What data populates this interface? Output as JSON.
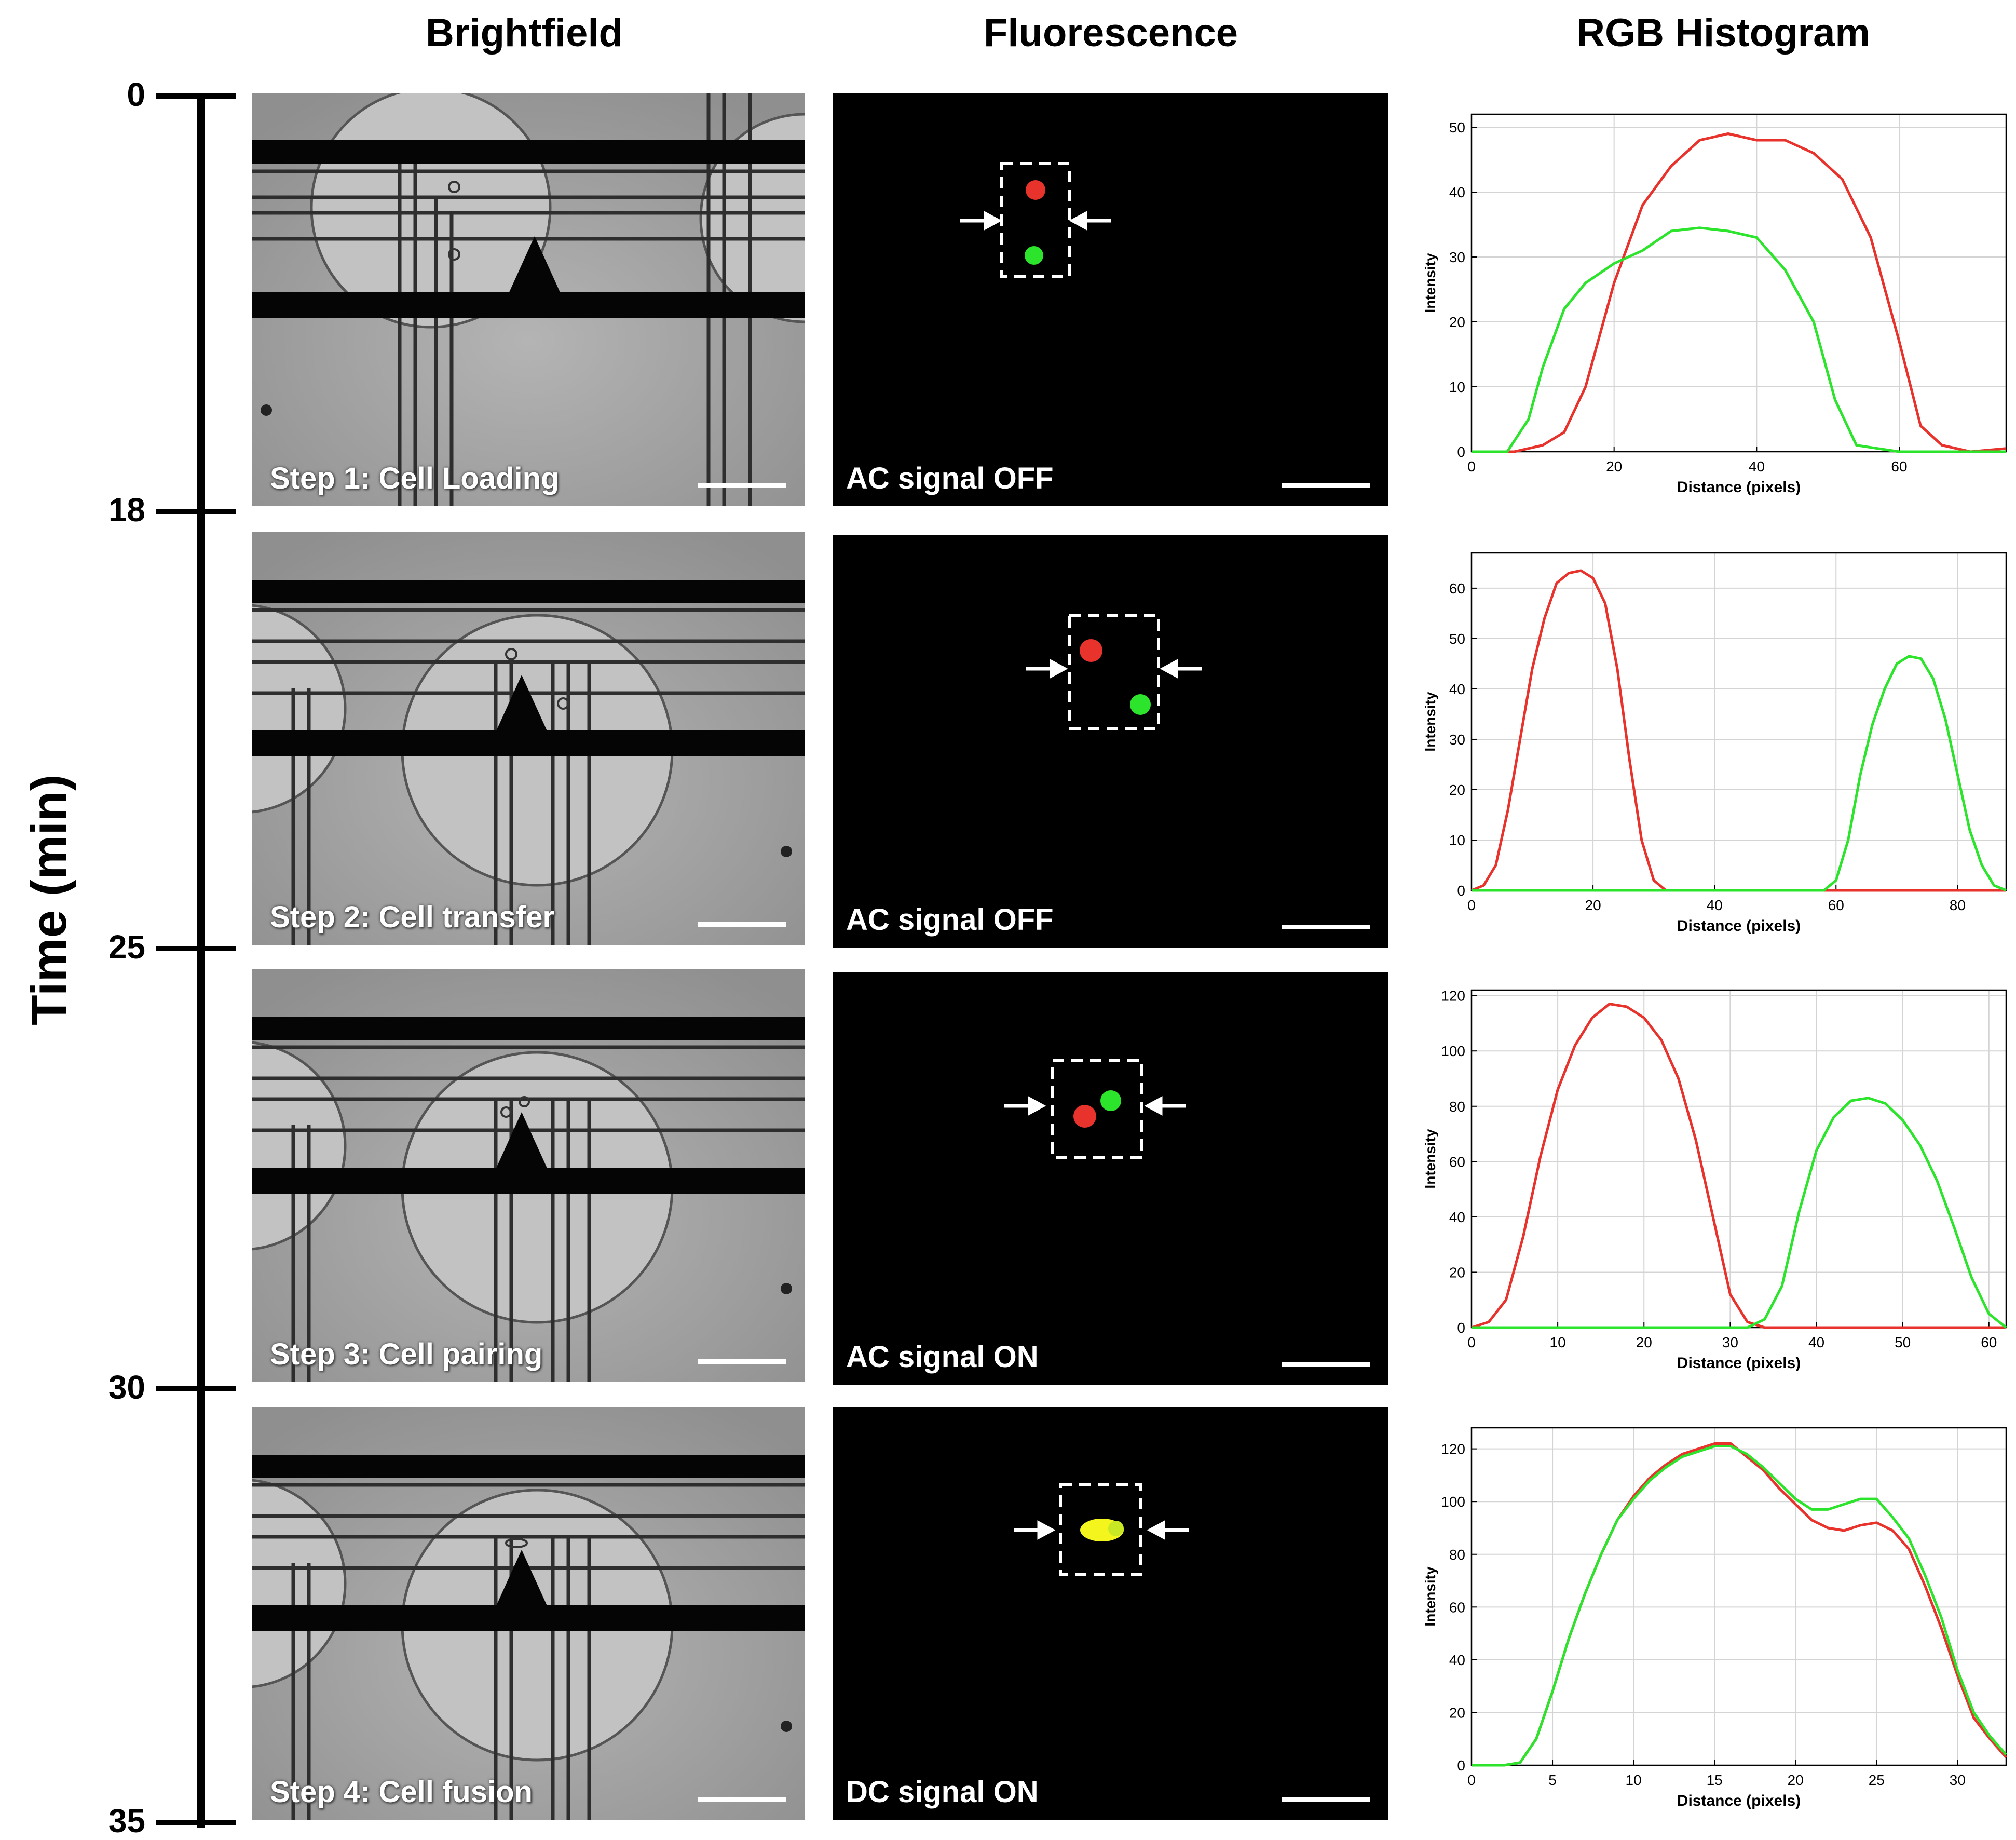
{
  "columns": {
    "brightfield": "Brightfield",
    "fluorescence": "Fluorescence",
    "rgb": "RGB Histogram"
  },
  "time_axis": {
    "title": "Time (min)",
    "ticks": [
      "0",
      "18",
      "25",
      "30",
      "35"
    ]
  },
  "rows": [
    {
      "step": "Step 1: Cell Loading",
      "signal": "AC signal OFF"
    },
    {
      "step": "Step 2: Cell transfer",
      "signal": "AC signal OFF"
    },
    {
      "step": "Step 3: Cell pairing",
      "signal": "AC signal ON"
    },
    {
      "step": "Step 4: Cell fusion",
      "signal": "DC signal ON"
    }
  ],
  "colors": {
    "red": "#e8322c",
    "green": "#2de42d",
    "yellow": "#f5f51e"
  },
  "chart_data": [
    {
      "type": "line",
      "xlabel": "Distance (pixels)",
      "ylabel": "Intensity",
      "xlim": [
        0,
        75
      ],
      "ylim": [
        0,
        52
      ],
      "xticks": [
        0,
        20,
        40,
        60
      ],
      "yticks": [
        0,
        10,
        20,
        30,
        40,
        50
      ],
      "series": [
        {
          "name": "red",
          "x": [
            0,
            6,
            10,
            13,
            16,
            20,
            24,
            28,
            32,
            36,
            40,
            44,
            48,
            52,
            56,
            60,
            63,
            66,
            70,
            75
          ],
          "y": [
            0,
            0,
            1,
            3,
            10,
            26,
            38,
            44,
            48,
            49,
            48,
            48,
            46,
            42,
            33,
            17,
            4,
            1,
            0,
            0.5
          ]
        },
        {
          "name": "green",
          "x": [
            0,
            5,
            8,
            10,
            13,
            16,
            20,
            24,
            28,
            32,
            36,
            40,
            44,
            48,
            51,
            54,
            57,
            60,
            75
          ],
          "y": [
            0,
            0,
            5,
            13,
            22,
            26,
            29,
            31,
            34,
            34.5,
            34,
            33,
            28,
            20,
            8,
            1,
            0.5,
            0,
            0
          ]
        }
      ]
    },
    {
      "type": "line",
      "xlabel": "Distance (pixels)",
      "ylabel": "Intensity",
      "xlim": [
        0,
        88
      ],
      "ylim": [
        0,
        67
      ],
      "xticks": [
        0,
        20,
        40,
        60,
        80
      ],
      "yticks": [
        0,
        10,
        20,
        30,
        40,
        50,
        60
      ],
      "series": [
        {
          "name": "red",
          "x": [
            0,
            2,
            4,
            6,
            8,
            10,
            12,
            14,
            16,
            18,
            20,
            22,
            24,
            26,
            28,
            30,
            32,
            34,
            88
          ],
          "y": [
            0,
            1,
            5,
            16,
            30,
            44,
            54,
            61,
            63,
            63.5,
            62,
            57,
            44,
            26,
            10,
            2,
            0,
            0,
            0
          ]
        },
        {
          "name": "green",
          "x": [
            0,
            58,
            60,
            62,
            64,
            66,
            68,
            70,
            72,
            74,
            76,
            78,
            80,
            82,
            84,
            86,
            88
          ],
          "y": [
            0,
            0,
            2,
            10,
            23,
            33,
            40,
            45,
            46.5,
            46,
            42,
            34,
            23,
            12,
            5,
            1,
            0
          ]
        }
      ]
    },
    {
      "type": "line",
      "xlabel": "Distance (pixels)",
      "ylabel": "Intensity",
      "xlim": [
        0,
        62
      ],
      "ylim": [
        0,
        122
      ],
      "xticks": [
        0,
        10,
        20,
        30,
        40,
        50,
        60
      ],
      "yticks": [
        0,
        20,
        40,
        60,
        80,
        100,
        120
      ],
      "series": [
        {
          "name": "red",
          "x": [
            0,
            2,
            4,
            6,
            8,
            10,
            12,
            14,
            16,
            18,
            20,
            22,
            24,
            26,
            28,
            30,
            32,
            34,
            62
          ],
          "y": [
            0,
            2,
            10,
            33,
            62,
            86,
            102,
            112,
            117,
            116,
            112,
            104,
            90,
            68,
            40,
            12,
            2,
            0,
            0
          ]
        },
        {
          "name": "green",
          "x": [
            0,
            32,
            34,
            36,
            38,
            40,
            42,
            44,
            46,
            48,
            50,
            52,
            54,
            56,
            58,
            60,
            62
          ],
          "y": [
            0,
            0,
            3,
            15,
            42,
            64,
            76,
            82,
            83,
            81,
            75,
            66,
            53,
            36,
            18,
            5,
            0
          ]
        }
      ]
    },
    {
      "type": "line",
      "xlabel": "Distance (pixels)",
      "ylabel": "Intensity",
      "xlim": [
        0,
        33
      ],
      "ylim": [
        0,
        128
      ],
      "xticks": [
        0,
        5,
        10,
        15,
        20,
        25,
        30
      ],
      "yticks": [
        0,
        20,
        40,
        60,
        80,
        100,
        120
      ],
      "series": [
        {
          "name": "red",
          "x": [
            0,
            2,
            3,
            4,
            5,
            6,
            7,
            8,
            9,
            10,
            11,
            12,
            13,
            14,
            15,
            16,
            17,
            18,
            19,
            20,
            21,
            22,
            23,
            24,
            25,
            26,
            27,
            28,
            29,
            30,
            31,
            32,
            33
          ],
          "y": [
            0,
            0,
            1,
            10,
            28,
            48,
            65,
            80,
            93,
            102,
            109,
            114,
            118,
            120,
            122,
            122,
            117,
            112,
            105,
            99,
            93,
            90,
            89,
            91,
            92,
            89,
            82,
            68,
            52,
            34,
            18,
            10,
            3
          ]
        },
        {
          "name": "green",
          "x": [
            0,
            2,
            3,
            4,
            5,
            6,
            7,
            8,
            9,
            10,
            11,
            12,
            13,
            14,
            15,
            16,
            17,
            18,
            19,
            20,
            21,
            22,
            23,
            24,
            25,
            26,
            27,
            28,
            29,
            30,
            31,
            32,
            33
          ],
          "y": [
            0,
            0,
            1,
            10,
            28,
            48,
            65,
            80,
            93,
            101,
            108,
            113,
            117,
            119,
            121,
            121,
            118,
            113,
            107,
            101,
            97,
            97,
            99,
            101,
            101,
            94,
            86,
            72,
            56,
            36,
            20,
            11,
            4
          ]
        }
      ]
    }
  ]
}
